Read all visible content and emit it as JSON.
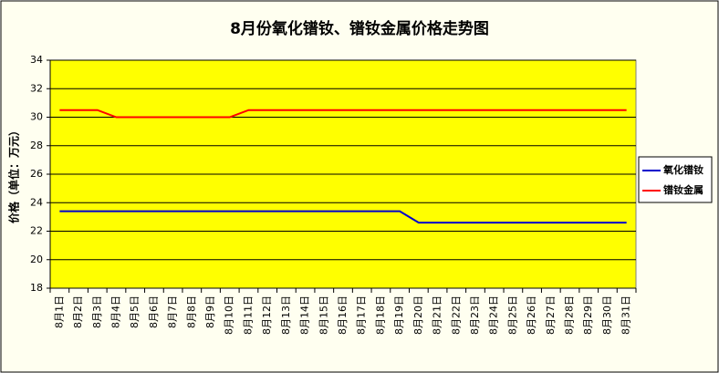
{
  "chart_data": {
    "type": "line",
    "title": "8月份氧化镨钕、镨钕金属价格走势图",
    "y_label": "价格（单位：万元）",
    "categories": [
      "8月1日",
      "8月2日",
      "8月3日",
      "8月4日",
      "8月5日",
      "8月6日",
      "8月7日",
      "8月8日",
      "8月9日",
      "8月10日",
      "8月11日",
      "8月12日",
      "8月13日",
      "8月14日",
      "8月15日",
      "8月16日",
      "8月17日",
      "8月18日",
      "8月19日",
      "8月20日",
      "8月21日",
      "8月22日",
      "8月23日",
      "8月24日",
      "8月25日",
      "8月26日",
      "8月27日",
      "8月28日",
      "8月29日",
      "8月30日",
      "8月31日"
    ],
    "series": [
      {
        "name": "氧化镨钕",
        "color": "#0000cc",
        "values": [
          23.4,
          23.4,
          23.4,
          23.4,
          23.4,
          23.4,
          23.4,
          23.4,
          23.4,
          23.4,
          23.4,
          23.4,
          23.4,
          23.4,
          23.4,
          23.4,
          23.4,
          23.4,
          23.4,
          22.6,
          22.6,
          22.6,
          22.6,
          22.6,
          22.6,
          22.6,
          22.6,
          22.6,
          22.6,
          22.6,
          22.6
        ]
      },
      {
        "name": "镨钕金属",
        "color": "#ff0000",
        "values": [
          30.5,
          30.5,
          30.5,
          30,
          30,
          30,
          30,
          30,
          30,
          30,
          30.5,
          30.5,
          30.5,
          30.5,
          30.5,
          30.5,
          30.5,
          30.5,
          30.5,
          30.5,
          30.5,
          30.5,
          30.5,
          30.5,
          30.5,
          30.5,
          30.5,
          30.5,
          30.5,
          30.5,
          30.5
        ]
      }
    ],
    "ylim": [
      18,
      34
    ],
    "yticks": [
      18,
      20,
      22,
      24,
      26,
      28,
      30,
      32,
      34
    ],
    "grid": true,
    "legend": "right",
    "plot_color": "#ffff00"
  }
}
